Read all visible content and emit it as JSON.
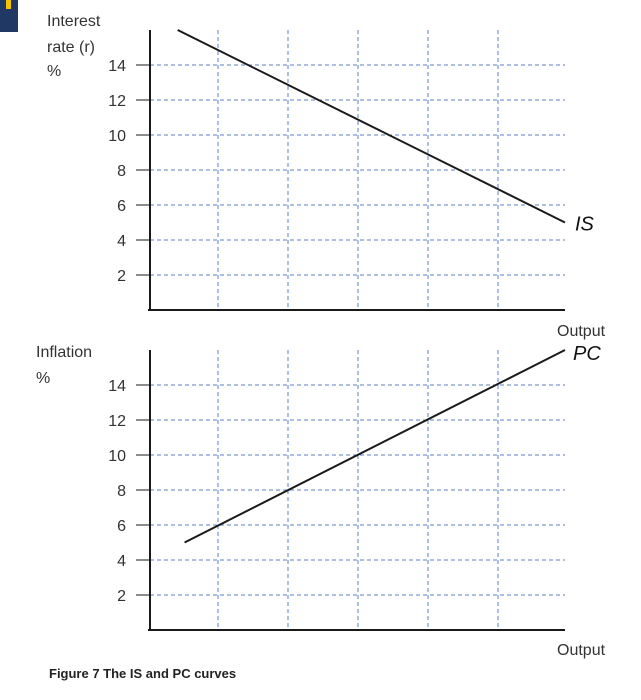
{
  "page": {
    "caption": "Figure 7 The IS and PC curves",
    "colors": {
      "grid": "#5b7fc7",
      "axis": "#1a1a1a",
      "curve": "#1a1a1a",
      "corner_mark": "#1f3864",
      "corner_accent": "#f5c400"
    }
  },
  "chart_data": [
    {
      "type": "line",
      "ylabel_lines": [
        "Interest",
        "rate (r)",
        "%"
      ],
      "xlabel": "Output",
      "yticks": [
        2,
        4,
        6,
        8,
        10,
        12,
        14
      ],
      "ylim": [
        0,
        16
      ],
      "xlim": [
        0,
        6
      ],
      "grid": true,
      "series": [
        {
          "name": "IS",
          "x": [
            0.4,
            6.0
          ],
          "y": [
            16.0,
            5.0
          ]
        }
      ]
    },
    {
      "type": "line",
      "ylabel_lines": [
        "Inflation",
        "%"
      ],
      "xlabel": "Output",
      "yticks": [
        2,
        4,
        6,
        8,
        10,
        12,
        14
      ],
      "ylim": [
        0,
        16
      ],
      "xlim": [
        0,
        6
      ],
      "grid": true,
      "series": [
        {
          "name": "PC",
          "x": [
            0.5,
            6.0
          ],
          "y": [
            5.0,
            16.0
          ]
        }
      ]
    }
  ]
}
